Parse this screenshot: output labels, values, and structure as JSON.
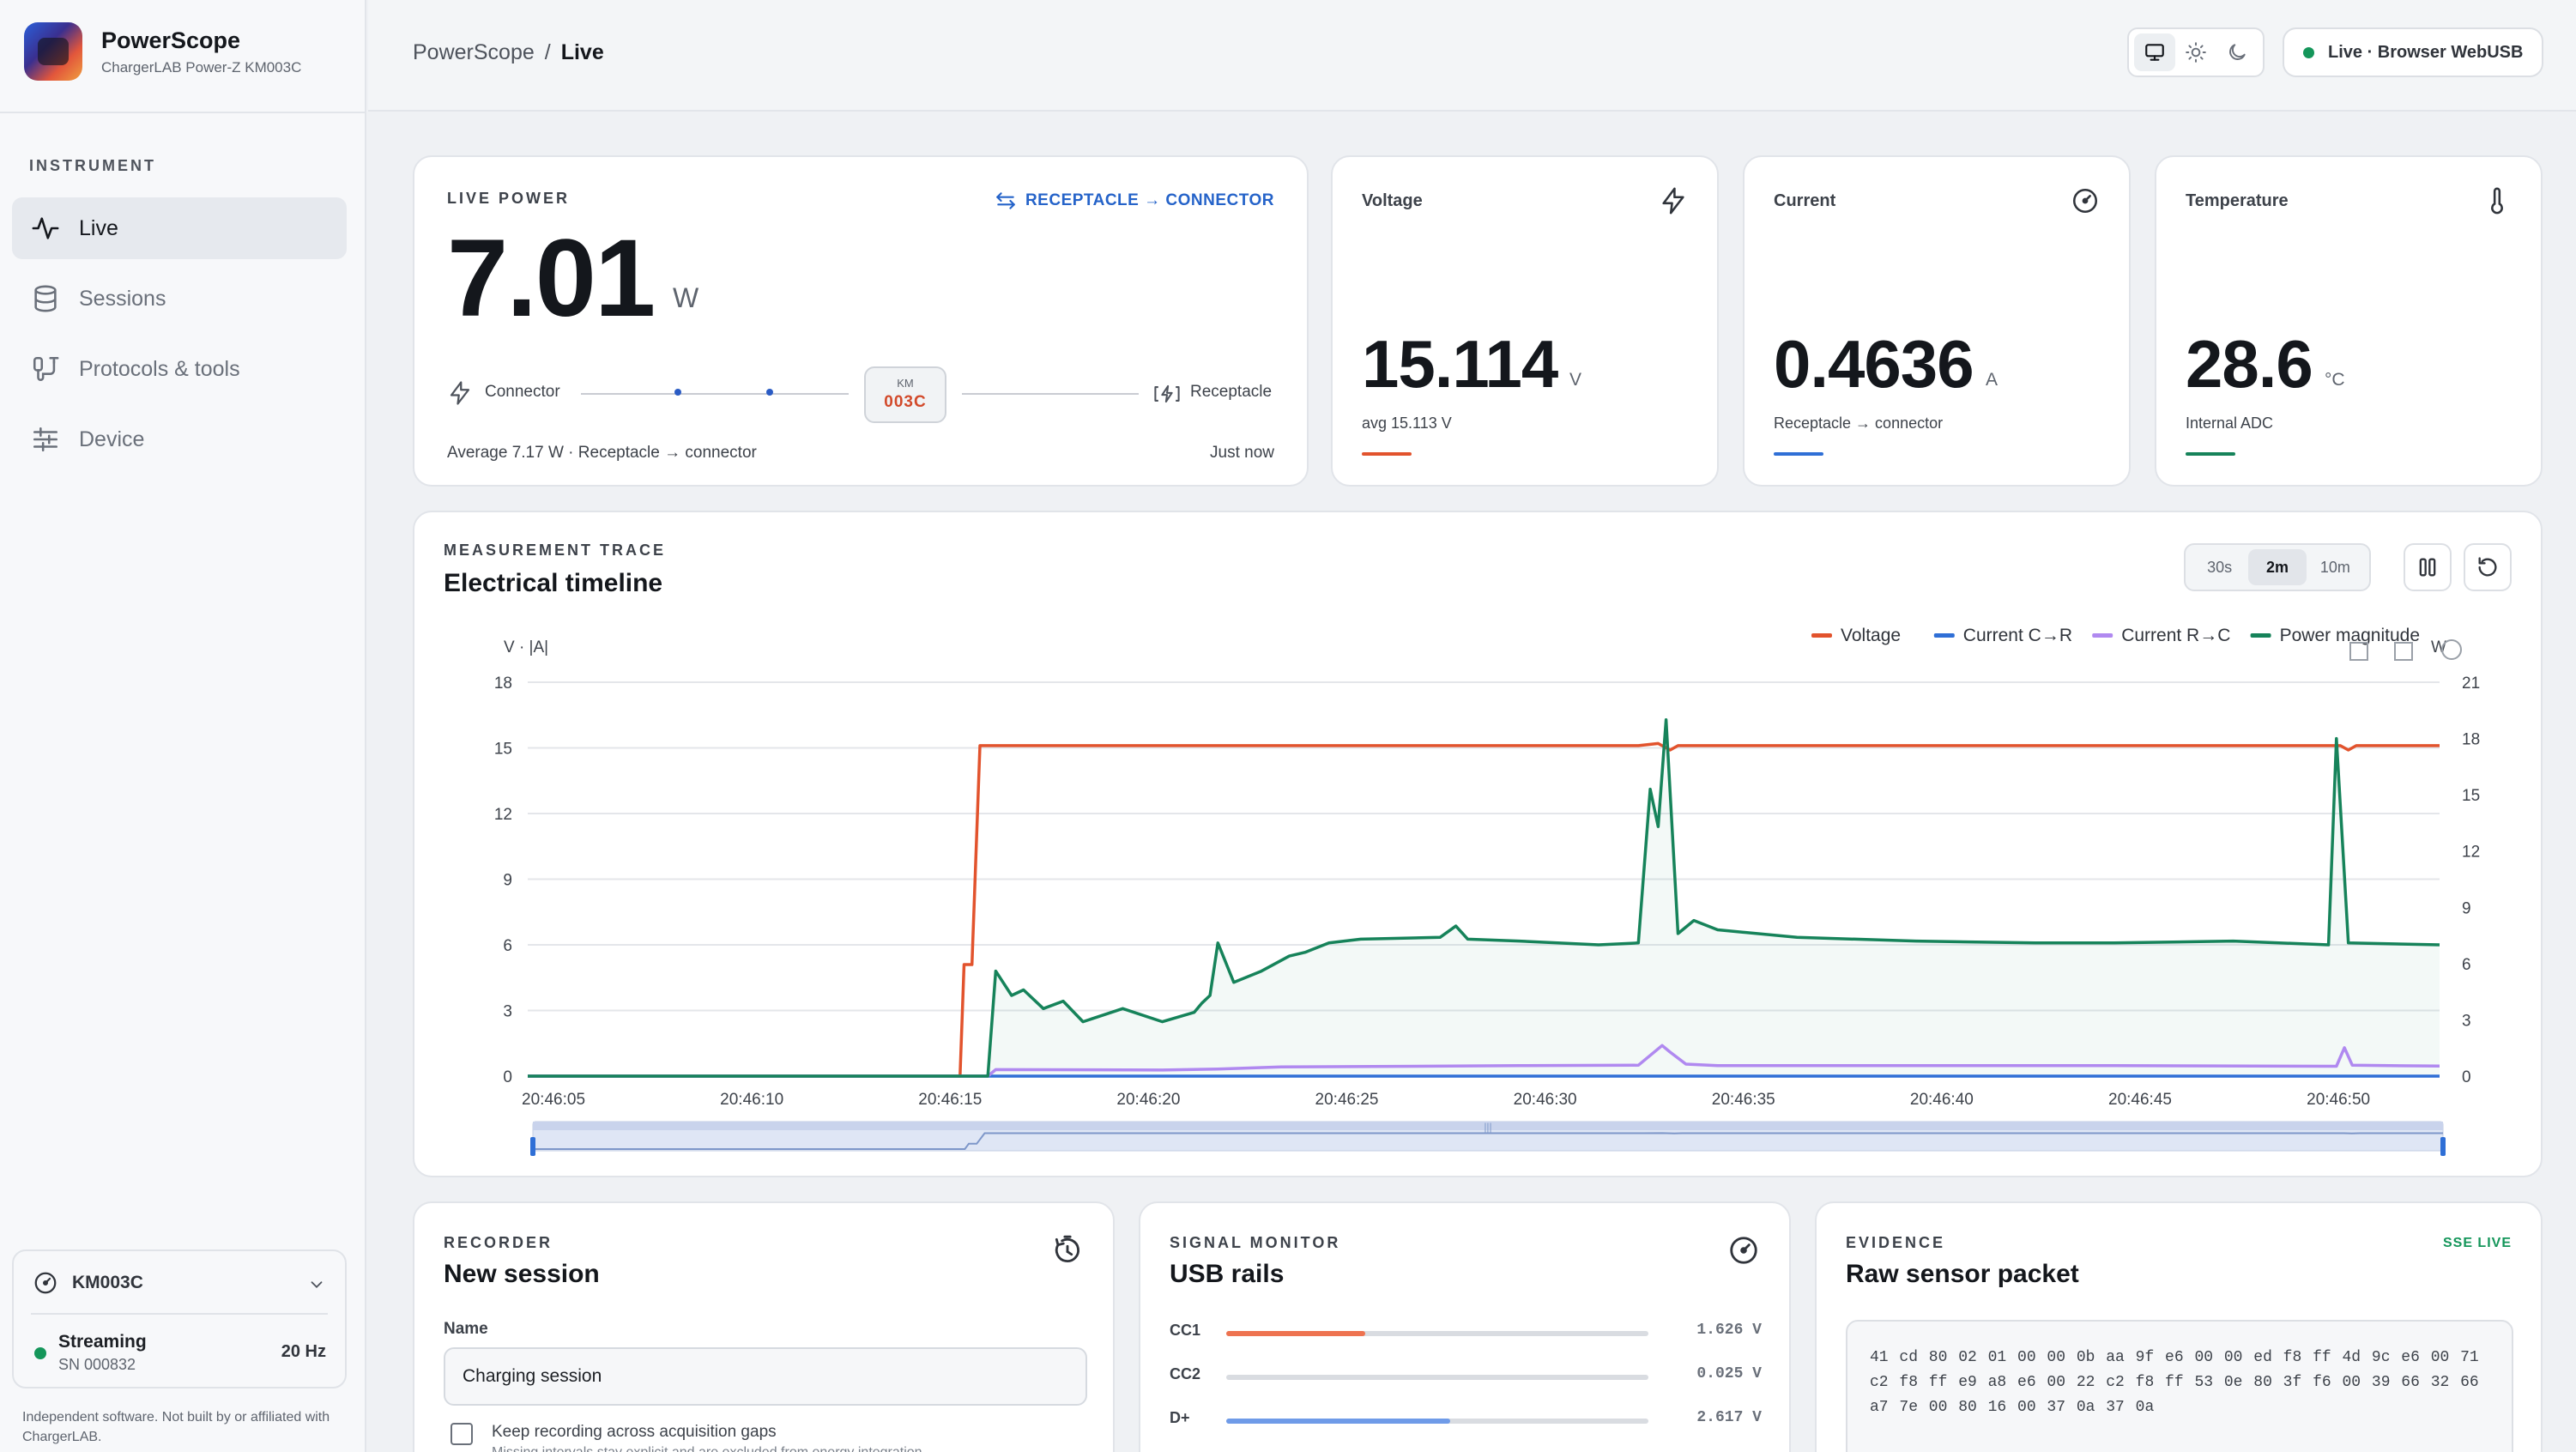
{
  "app": {
    "name": "PowerScope",
    "subtitle": "ChargerLAB Power-Z KM003C"
  },
  "sidebar": {
    "section": "INSTRUMENT",
    "items": [
      {
        "label": "Live",
        "icon": "activity-icon",
        "active": true
      },
      {
        "label": "Sessions",
        "icon": "database-icon",
        "active": false
      },
      {
        "label": "Protocols & tools",
        "icon": "tools-icon",
        "active": false
      },
      {
        "label": "Device",
        "icon": "sliders-icon",
        "active": false
      }
    ],
    "device": {
      "name": "KM003C",
      "status": "Streaming",
      "serial": "SN 000832",
      "rate": "20 Hz"
    },
    "disclaimer": "Independent software. Not built by or affiliated with ChargerLAB."
  },
  "header": {
    "breadcrumb": {
      "root": "PowerScope",
      "separator": "/",
      "current": "Live"
    },
    "connection": "Live · Browser WebUSB"
  },
  "live_power": {
    "eyebrow": "LIVE POWER",
    "direction": "RECEPTACLE → CONNECTOR",
    "value": "7.01",
    "unit": "W",
    "connector_label": "Connector",
    "receptacle_label": "Receptacle",
    "chip_top": "KM",
    "chip_model": "003C",
    "average": "Average 7.17 W · Receptacle → connector",
    "updated": "Just now"
  },
  "metrics": {
    "voltage": {
      "label": "Voltage",
      "value": "15.114",
      "unit": "V",
      "sub": "avg 15.113 V",
      "color": "#e2532d"
    },
    "current": {
      "label": "Current",
      "value": "0.4636",
      "unit": "A",
      "sub": "Receptacle → connector",
      "color": "#2f6fd6"
    },
    "temperature": {
      "label": "Temperature",
      "value": "28.6",
      "unit": "°C",
      "sub": "Internal ADC",
      "color": "#16835a"
    }
  },
  "trace": {
    "eyebrow": "MEASUREMENT TRACE",
    "title": "Electrical timeline",
    "ranges": [
      "30s",
      "2m",
      "10m"
    ],
    "active_range": "2m",
    "pause_icon": "pause-icon",
    "reset_icon": "reset-icon"
  },
  "chart_data": {
    "type": "line",
    "title": "",
    "ylabel_left": "V · |A|",
    "ylabel_right": "W",
    "ylim_left": [
      0,
      18
    ],
    "ylim_right": [
      0,
      21
    ],
    "yticks_left": [
      "0",
      "3",
      "6",
      "9",
      "12",
      "15",
      "18"
    ],
    "yticks_right": [
      "0",
      "3",
      "6",
      "9",
      "12",
      "15",
      "18",
      "21"
    ],
    "xticks": [
      "20:46:05",
      "20:46:10",
      "20:46:15",
      "20:46:20",
      "20:46:25",
      "20:46:30",
      "20:46:35",
      "20:46:40",
      "20:46:45",
      "20:46:50"
    ],
    "xlim": [
      0,
      48.2
    ],
    "legend": [
      "Voltage",
      "Current C→R",
      "Current R→C",
      "Power magnitude"
    ],
    "legend_position": "top-right",
    "grid": true,
    "series": [
      {
        "name": "Voltage",
        "axis": "left",
        "color": "#e2532d",
        "points": [
          [
            0,
            0
          ],
          [
            10.9,
            0
          ],
          [
            11.0,
            5.1
          ],
          [
            11.2,
            5.1
          ],
          [
            11.4,
            15.1
          ],
          [
            13,
            15.1
          ],
          [
            17,
            15.1
          ],
          [
            20,
            15.1
          ],
          [
            25,
            15.1
          ],
          [
            28,
            15.1
          ],
          [
            28.5,
            15.2
          ],
          [
            28.8,
            14.9
          ],
          [
            29.0,
            15.1
          ],
          [
            35,
            15.1
          ],
          [
            40,
            15.1
          ],
          [
            45,
            15.1
          ],
          [
            45.7,
            15.1
          ],
          [
            45.9,
            14.9
          ],
          [
            46.1,
            15.1
          ],
          [
            48.2,
            15.1
          ]
        ]
      },
      {
        "name": "Current C→R",
        "axis": "left",
        "color": "#2f6fd6",
        "points": [
          [
            0,
            0
          ],
          [
            48.2,
            0
          ]
        ]
      },
      {
        "name": "Current R→C",
        "axis": "left",
        "color": "#b089f0",
        "points": [
          [
            0,
            0
          ],
          [
            11.6,
            0
          ],
          [
            11.8,
            0.3
          ],
          [
            16,
            0.28
          ],
          [
            17.4,
            0.32
          ],
          [
            19,
            0.42
          ],
          [
            25,
            0.48
          ],
          [
            28,
            0.5
          ],
          [
            28.6,
            1.4
          ],
          [
            28.8,
            1.1
          ],
          [
            29.2,
            0.55
          ],
          [
            30,
            0.48
          ],
          [
            40,
            0.48
          ],
          [
            45.6,
            0.45
          ],
          [
            45.8,
            1.3
          ],
          [
            46.0,
            0.5
          ],
          [
            48.2,
            0.46
          ]
        ]
      },
      {
        "name": "Power magnitude",
        "axis": "right",
        "color": "#16835a",
        "points": [
          [
            0,
            0
          ],
          [
            11.6,
            0
          ],
          [
            11.8,
            5.6
          ],
          [
            12.2,
            4.3
          ],
          [
            12.5,
            4.6
          ],
          [
            13,
            3.6
          ],
          [
            13.5,
            4.0
          ],
          [
            14,
            2.9
          ],
          [
            15,
            3.6
          ],
          [
            16,
            2.9
          ],
          [
            16.8,
            3.4
          ],
          [
            17,
            3.9
          ],
          [
            17.2,
            4.3
          ],
          [
            17.4,
            7.1
          ],
          [
            17.8,
            5.0
          ],
          [
            18.5,
            5.6
          ],
          [
            19.2,
            6.4
          ],
          [
            19.6,
            6.6
          ],
          [
            20.2,
            7.1
          ],
          [
            21,
            7.3
          ],
          [
            23,
            7.4
          ],
          [
            23.4,
            8.0
          ],
          [
            23.7,
            7.3
          ],
          [
            25,
            7.2
          ],
          [
            27,
            7.0
          ],
          [
            28,
            7.1
          ],
          [
            28.3,
            15.3
          ],
          [
            28.5,
            13.3
          ],
          [
            28.7,
            19.0
          ],
          [
            29.0,
            7.6
          ],
          [
            29.4,
            8.3
          ],
          [
            30,
            7.8
          ],
          [
            32,
            7.4
          ],
          [
            35,
            7.2
          ],
          [
            38,
            7.1
          ],
          [
            40,
            7.1
          ],
          [
            43,
            7.2
          ],
          [
            45.4,
            7.0
          ],
          [
            45.6,
            18.0
          ],
          [
            45.9,
            7.1
          ],
          [
            48.2,
            7.0
          ]
        ]
      }
    ]
  },
  "recorder": {
    "eyebrow": "RECORDER",
    "title": "New session",
    "name_label": "Name",
    "name_value": "Charging session",
    "checkbox_label": "Keep recording across acquisition gaps",
    "checkbox_note": "Missing intervals stay explicit and are excluded from energy integration."
  },
  "signal": {
    "eyebrow": "SIGNAL MONITOR",
    "title": "USB rails",
    "rails": [
      {
        "label": "CC1",
        "value": "1.626 V",
        "fraction": 0.33,
        "color": "#ee7350"
      },
      {
        "label": "CC2",
        "value": "0.025 V",
        "fraction": 0.0,
        "color": "#9aa0a8"
      },
      {
        "label": "D+",
        "value": "2.617 V",
        "fraction": 0.53,
        "color": "#6f9be8"
      }
    ]
  },
  "evidence": {
    "eyebrow": "EVIDENCE",
    "title": "Raw sensor packet",
    "badge": "SSE LIVE",
    "packet": "41 cd 80 02 01 00 00 0b aa 9f e6 00 00 ed f8 ff 4d 9c e6 00 71 c2 f8 ff e9 a8 e6 00 22 c2 f8 ff 53 0e 80 3f f6 00 39 66 32 66 a7 7e 00 80 16 00 37 0a 37 0a"
  }
}
